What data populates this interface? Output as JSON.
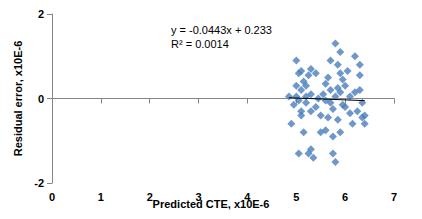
{
  "chart_data": {
    "type": "scatter",
    "x_label": "Predicted CTE, x10E-6",
    "y_label": "Residual error, x10E-6",
    "annotations": [
      "y = -0.0443x + 0.233",
      "R² = 0.0014"
    ],
    "xlim": [
      0,
      7
    ],
    "xticks": [
      0,
      1,
      2,
      3,
      4,
      5,
      6,
      7
    ],
    "ylim": [
      -2,
      2
    ],
    "yticks": [
      -2,
      0,
      2
    ],
    "grid": false,
    "series": [
      {
        "type": "scatter",
        "color": "#4a7ebb",
        "marker": "diamond",
        "x": [
          5.0,
          5.0,
          5.05,
          4.95,
          4.9,
          5.1,
          5.1,
          5.2,
          5.15,
          5.3,
          5.25,
          5.3,
          5.35,
          5.2,
          5.05,
          5.4,
          5.4,
          5.0,
          5.1,
          5.5,
          5.3,
          4.85,
          5.2,
          5.45,
          5.6,
          5.6,
          5.65,
          5.7,
          5.75,
          5.8,
          5.75,
          5.8,
          5.85,
          5.9,
          5.9,
          5.7,
          5.75,
          5.85,
          5.9,
          5.95,
          6.0,
          6.0,
          6.05,
          6.1,
          6.2,
          6.3,
          6.3,
          6.35,
          6.35,
          6.4,
          6.4,
          6.25,
          6.2,
          6.3,
          6.1,
          5.9,
          5.6,
          5.55,
          5.5,
          5.05,
          5.15,
          5.3,
          5.95,
          5.8,
          6.15,
          5.7,
          5.65,
          5.85,
          5.1,
          5.25
        ],
        "values": [
          0.05,
          0.9,
          0.6,
          -0.15,
          -0.6,
          -0.3,
          0.2,
          -0.1,
          0.4,
          0.7,
          -1.3,
          -1.2,
          -1.4,
          0.3,
          -0.05,
          0.6,
          -0.2,
          0.3,
          -0.4,
          -0.4,
          0.1,
          0.05,
          0.05,
          0.0,
          -0.05,
          0.35,
          0.5,
          0.9,
          -0.9,
          -1.5,
          -1.3,
          1.3,
          0.8,
          0.6,
          1.1,
          0.2,
          -0.25,
          -0.5,
          0.15,
          -0.15,
          0.3,
          -0.2,
          0.65,
          -0.35,
          1.0,
          0.8,
          0.2,
          -0.1,
          -0.45,
          -0.4,
          -0.6,
          -0.3,
          0.15,
          0.55,
          0.05,
          -0.8,
          -0.75,
          0.1,
          -0.8,
          -1.3,
          -0.8,
          -0.3,
          0.45,
          0.05,
          -0.6,
          -0.1,
          -0.45,
          0.25,
          0.65,
          0.55
        ]
      },
      {
        "type": "line",
        "color": "#000000",
        "x": [
          4.85,
          6.4
        ],
        "values": [
          0.0181,
          -0.0505
        ]
      }
    ]
  }
}
